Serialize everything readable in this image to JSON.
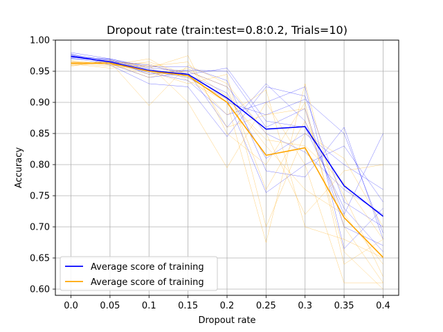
{
  "chart_data": {
    "type": "line",
    "title": "Dropout rate (train:test=0.8:0.2, Trials=10)",
    "xlabel": "Dropout rate",
    "ylabel": "Accuracy",
    "x": [
      0.0,
      0.05,
      0.1,
      0.15,
      0.2,
      0.25,
      0.3,
      0.35,
      0.4
    ],
    "x_tick_labels": [
      "0.0",
      "0.05",
      "0.1",
      "0.15",
      "0.2",
      "0.25",
      "0.3",
      "0.35",
      "0.4"
    ],
    "ylim": [
      0.59,
      1.0
    ],
    "y_ticks": [
      0.6,
      0.65,
      0.7,
      0.75,
      0.8,
      0.85,
      0.9,
      0.95,
      1.0
    ],
    "y_tick_labels": [
      "0.60",
      "0.65",
      "0.70",
      "0.75",
      "0.80",
      "0.85",
      "0.90",
      "0.95",
      "1.00"
    ],
    "grid": true,
    "legend_position": "lower-left",
    "series": [
      {
        "name": "Average score of training",
        "color": "#0000ff",
        "values": [
          0.974,
          0.965,
          0.951,
          0.945,
          0.907,
          0.857,
          0.861,
          0.766,
          0.717
        ]
      },
      {
        "name": "Average score of training",
        "color": "#ffa500",
        "values": [
          0.963,
          0.963,
          0.95,
          0.943,
          0.9,
          0.815,
          0.827,
          0.715,
          0.651
        ]
      }
    ],
    "trials": [
      {
        "color": "#0000ff",
        "runs": [
          [
            0.98,
            0.97,
            0.955,
            0.95,
            0.925,
            0.85,
            0.82,
            0.76,
            0.72
          ],
          [
            0.975,
            0.965,
            0.95,
            0.94,
            0.905,
            0.755,
            0.8,
            0.83,
            0.74
          ],
          [
            0.972,
            0.97,
            0.957,
            0.957,
            0.935,
            0.79,
            0.78,
            0.86,
            0.68
          ],
          [
            0.978,
            0.96,
            0.93,
            0.925,
            0.845,
            0.925,
            0.91,
            0.74,
            0.7
          ],
          [
            0.97,
            0.968,
            0.945,
            0.952,
            0.95,
            0.86,
            0.89,
            0.7,
            0.67
          ],
          [
            0.976,
            0.963,
            0.948,
            0.935,
            0.88,
            0.9,
            0.925,
            0.665,
            0.73
          ],
          [
            0.973,
            0.966,
            0.96,
            0.945,
            0.915,
            0.81,
            0.85,
            0.8,
            0.76
          ],
          [
            0.971,
            0.962,
            0.94,
            0.948,
            0.86,
            0.93,
            0.87,
            0.72,
            0.85
          ],
          [
            0.977,
            0.967,
            0.953,
            0.943,
            0.9,
            0.88,
            0.905,
            0.85,
            0.69
          ],
          [
            0.974,
            0.969,
            0.952,
            0.945,
            0.955,
            0.87,
            0.86,
            0.73,
            0.66
          ]
        ]
      },
      {
        "color": "#ffa500",
        "runs": [
          [
            0.965,
            0.96,
            0.97,
            0.935,
            0.9,
            0.675,
            0.93,
            0.7,
            0.61
          ],
          [
            0.96,
            0.965,
            0.895,
            0.96,
            0.93,
            0.85,
            0.72,
            0.79,
            0.8
          ],
          [
            0.962,
            0.955,
            0.96,
            0.9,
            0.795,
            0.9,
            0.8,
            0.61,
            0.61
          ],
          [
            0.958,
            0.968,
            0.955,
            0.975,
            0.85,
            0.8,
            0.9,
            0.64,
            0.68
          ],
          [
            0.966,
            0.962,
            0.945,
            0.95,
            0.925,
            0.76,
            0.87,
            0.75,
            0.62
          ],
          [
            0.963,
            0.958,
            0.965,
            0.945,
            0.88,
            0.92,
            0.7,
            0.68,
            0.65
          ],
          [
            0.961,
            0.966,
            0.95,
            0.93,
            0.945,
            0.7,
            0.85,
            0.81,
            0.7
          ],
          [
            0.964,
            0.963,
            0.94,
            0.955,
            0.91,
            0.83,
            0.76,
            0.72,
            0.64
          ],
          [
            0.967,
            0.96,
            0.958,
            0.965,
            0.86,
            0.88,
            0.89,
            0.66,
            0.6
          ],
          [
            0.959,
            0.964,
            0.962,
            0.94,
            0.905,
            0.84,
            0.83,
            0.77,
            0.68
          ]
        ]
      }
    ]
  }
}
